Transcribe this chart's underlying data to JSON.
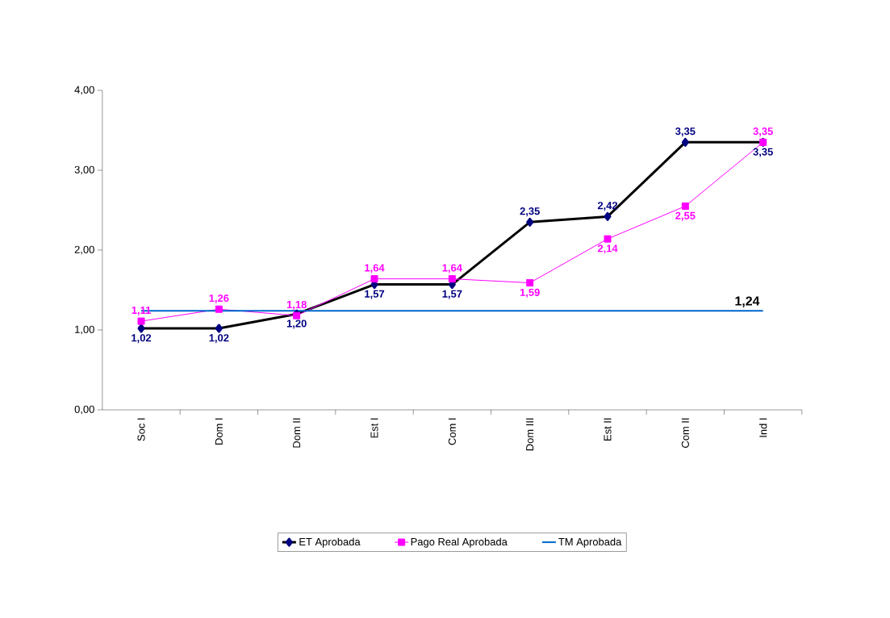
{
  "chart_data": {
    "type": "line",
    "categories": [
      "Soc I",
      "Dom I",
      "Dom II",
      "Est I",
      "Com I",
      "Dom III",
      "Est II",
      "Com II",
      "Ind I"
    ],
    "series": [
      {
        "name": "ET Aprobada",
        "color": "#000000",
        "colors": [
          "#000080",
          "#000080",
          "#000080",
          "#000080",
          "#000080",
          "#000080",
          "#000080",
          "#000080",
          "#000080"
        ],
        "marker": "diamond",
        "values": [
          1.02,
          1.02,
          1.2,
          1.57,
          1.57,
          2.35,
          2.42,
          3.35,
          3.35
        ],
        "value_labels": [
          "1,02",
          "1,02",
          "1,20",
          "1,57",
          "1,57",
          "2,35",
          "2,42",
          "3,35",
          "3,35"
        ]
      },
      {
        "name": "Pago Real  Aprobada",
        "color": "#ff00ff",
        "marker": "square",
        "values": [
          1.11,
          1.26,
          1.18,
          1.64,
          1.64,
          1.59,
          2.14,
          2.55,
          3.35
        ],
        "value_labels": [
          "1,11",
          "1,26",
          "1,18",
          "1,64",
          "1,64",
          "1,59",
          "2,14",
          "2,55",
          "3,35"
        ]
      },
      {
        "name": "TM Aprobada",
        "color": "#0066cc",
        "marker": "none",
        "values": [
          1.24,
          1.24,
          1.24,
          1.24,
          1.24,
          1.24,
          1.24,
          1.24,
          1.24
        ]
      }
    ],
    "annotations": [
      {
        "text": "1,24",
        "x": "Ind I",
        "y": 1.24
      }
    ],
    "ylim": [
      0,
      4
    ],
    "yticks": [
      {
        "value": 0,
        "label": "0,00"
      },
      {
        "value": 1,
        "label": "1,00"
      },
      {
        "value": 2,
        "label": "2,00"
      },
      {
        "value": 3,
        "label": "3,00"
      },
      {
        "value": 4,
        "label": "4,00"
      }
    ],
    "grid": false,
    "legend": "bottom"
  }
}
